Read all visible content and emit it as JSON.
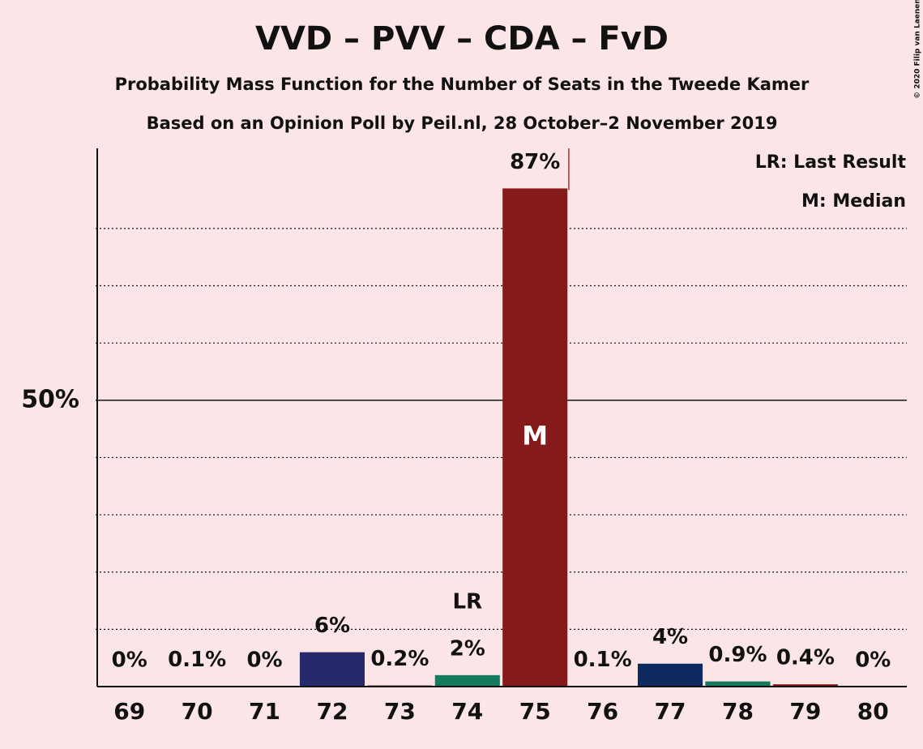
{
  "chart_data": {
    "type": "bar",
    "title": "VVD – PVV – CDA – FvD",
    "subtitles": [
      "Probability Mass Function for the Number of Seats in the Tweede Kamer",
      "Based on an Opinion Poll by Peil.nl, 28 October–2 November 2019"
    ],
    "categories": [
      "69",
      "70",
      "71",
      "72",
      "73",
      "74",
      "75",
      "76",
      "77",
      "78",
      "79",
      "80"
    ],
    "values": [
      0,
      0.1,
      0,
      6,
      0.2,
      2,
      87,
      0.1,
      4,
      0.9,
      0.4,
      0
    ],
    "value_labels": [
      "0%",
      "0.1%",
      "0%",
      "6%",
      "0.2%",
      "2%",
      "87%",
      "0.1%",
      "4%",
      "0.9%",
      "0.4%",
      "0%"
    ],
    "colors": [
      "#841a1a",
      "#841a1a",
      "#841a1a",
      "#262a6b",
      "#841a1a",
      "#137a5e",
      "#841a1a",
      "#841a1a",
      "#0c2a5e",
      "#137a5e",
      "#841a1a",
      "#841a1a"
    ],
    "ylim": [
      0,
      94
    ],
    "yticks": [
      {
        "value": 50,
        "label": "50%"
      }
    ],
    "minor_grid": [
      10,
      20,
      30,
      40,
      60,
      70,
      80
    ],
    "annotations": [
      {
        "label": "LR",
        "category": "74"
      },
      {
        "label": "M",
        "category": "75"
      }
    ],
    "legend": [
      "LR: Last Result",
      "M: Median"
    ],
    "credit": "© 2020 Filip van Laenen"
  }
}
